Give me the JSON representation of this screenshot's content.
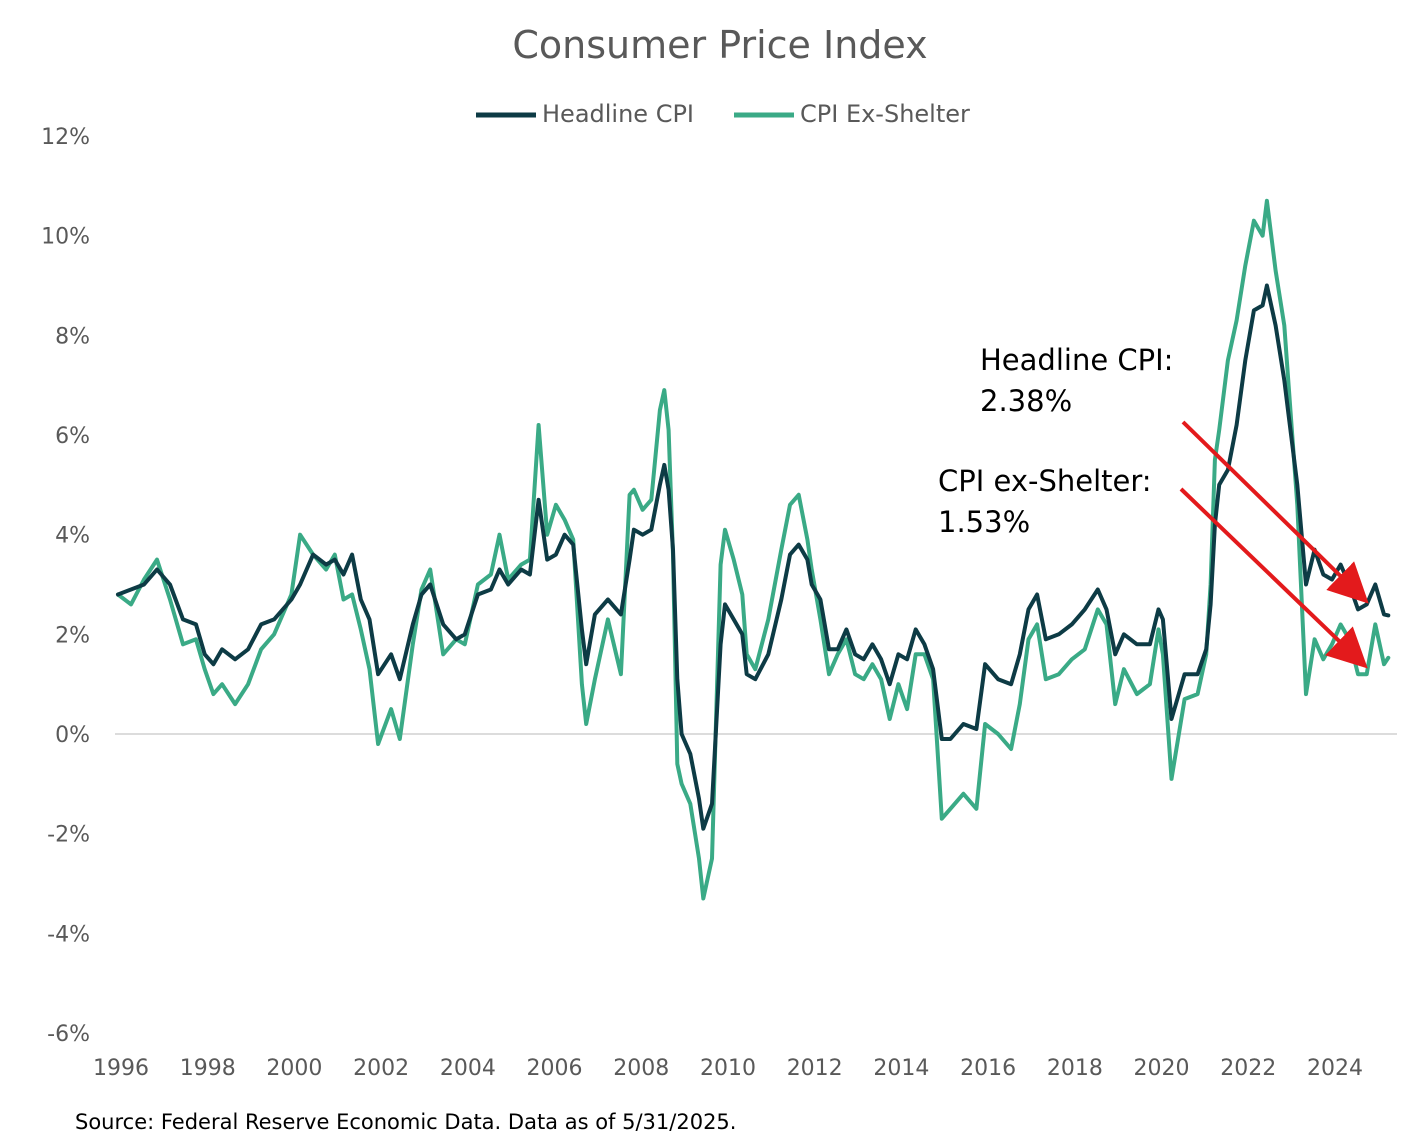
{
  "chart_data": {
    "type": "line",
    "title": "Consumer Price Index",
    "source": "Source: Federal Reserve Economic Data. Data as of 5/31/2025.",
    "xlabel": "",
    "ylabel": "",
    "xlim": [
      1996,
      2025.5
    ],
    "ylim": [
      -6,
      12
    ],
    "x_ticks": [
      1996,
      1998,
      2000,
      2002,
      2004,
      2006,
      2008,
      2010,
      2012,
      2014,
      2016,
      2018,
      2020,
      2022,
      2024
    ],
    "y_ticks": [
      -6,
      -4,
      -2,
      0,
      2,
      4,
      6,
      8,
      10,
      12
    ],
    "y_tick_labels": [
      "-6%",
      "-4%",
      "-2%",
      "0%",
      "2%",
      "4%",
      "6%",
      "8%",
      "10%",
      "12%"
    ],
    "grid": "zero line only",
    "legend_position": "top-center",
    "series": [
      {
        "name": "Headline CPI",
        "color": "#0d3b45",
        "points": [
          [
            1996.0,
            2.8
          ],
          [
            1996.3,
            2.9
          ],
          [
            1996.6,
            3.0
          ],
          [
            1996.9,
            3.3
          ],
          [
            1997.2,
            3.0
          ],
          [
            1997.5,
            2.3
          ],
          [
            1997.8,
            2.2
          ],
          [
            1998.0,
            1.6
          ],
          [
            1998.2,
            1.4
          ],
          [
            1998.4,
            1.7
          ],
          [
            1998.7,
            1.5
          ],
          [
            1999.0,
            1.7
          ],
          [
            1999.3,
            2.2
          ],
          [
            1999.6,
            2.3
          ],
          [
            2000.0,
            2.7
          ],
          [
            2000.2,
            3.0
          ],
          [
            2000.5,
            3.6
          ],
          [
            2000.8,
            3.4
          ],
          [
            2001.0,
            3.5
          ],
          [
            2001.2,
            3.2
          ],
          [
            2001.4,
            3.6
          ],
          [
            2001.6,
            2.7
          ],
          [
            2001.8,
            2.3
          ],
          [
            2002.0,
            1.2
          ],
          [
            2002.3,
            1.6
          ],
          [
            2002.5,
            1.1
          ],
          [
            2002.8,
            2.2
          ],
          [
            2003.0,
            2.8
          ],
          [
            2003.2,
            3.0
          ],
          [
            2003.5,
            2.2
          ],
          [
            2003.8,
            1.9
          ],
          [
            2004.0,
            2.0
          ],
          [
            2004.3,
            2.8
          ],
          [
            2004.6,
            2.9
          ],
          [
            2004.8,
            3.3
          ],
          [
            2005.0,
            3.0
          ],
          [
            2005.3,
            3.3
          ],
          [
            2005.5,
            3.2
          ],
          [
            2005.7,
            4.7
          ],
          [
            2005.9,
            3.5
          ],
          [
            2006.1,
            3.6
          ],
          [
            2006.3,
            4.0
          ],
          [
            2006.5,
            3.8
          ],
          [
            2006.7,
            2.1
          ],
          [
            2006.8,
            1.4
          ],
          [
            2007.0,
            2.4
          ],
          [
            2007.3,
            2.7
          ],
          [
            2007.6,
            2.4
          ],
          [
            2007.8,
            3.5
          ],
          [
            2007.9,
            4.1
          ],
          [
            2008.1,
            4.0
          ],
          [
            2008.3,
            4.1
          ],
          [
            2008.5,
            5.0
          ],
          [
            2008.6,
            5.4
          ],
          [
            2008.7,
            4.9
          ],
          [
            2008.8,
            3.7
          ],
          [
            2008.9,
            1.1
          ],
          [
            2009.0,
            0.0
          ],
          [
            2009.2,
            -0.4
          ],
          [
            2009.4,
            -1.3
          ],
          [
            2009.5,
            -1.9
          ],
          [
            2009.7,
            -1.4
          ],
          [
            2009.9,
            1.8
          ],
          [
            2010.0,
            2.6
          ],
          [
            2010.2,
            2.3
          ],
          [
            2010.4,
            2.0
          ],
          [
            2010.5,
            1.2
          ],
          [
            2010.7,
            1.1
          ],
          [
            2011.0,
            1.6
          ],
          [
            2011.3,
            2.7
          ],
          [
            2011.5,
            3.6
          ],
          [
            2011.7,
            3.8
          ],
          [
            2011.9,
            3.5
          ],
          [
            2012.0,
            3.0
          ],
          [
            2012.2,
            2.7
          ],
          [
            2012.4,
            1.7
          ],
          [
            2012.6,
            1.7
          ],
          [
            2012.8,
            2.1
          ],
          [
            2013.0,
            1.6
          ],
          [
            2013.2,
            1.5
          ],
          [
            2013.4,
            1.8
          ],
          [
            2013.6,
            1.5
          ],
          [
            2013.8,
            1.0
          ],
          [
            2014.0,
            1.6
          ],
          [
            2014.2,
            1.5
          ],
          [
            2014.4,
            2.1
          ],
          [
            2014.6,
            1.8
          ],
          [
            2014.8,
            1.3
          ],
          [
            2015.0,
            -0.1
          ],
          [
            2015.2,
            -0.1
          ],
          [
            2015.5,
            0.2
          ],
          [
            2015.8,
            0.1
          ],
          [
            2016.0,
            1.4
          ],
          [
            2016.3,
            1.1
          ],
          [
            2016.6,
            1.0
          ],
          [
            2016.8,
            1.6
          ],
          [
            2017.0,
            2.5
          ],
          [
            2017.2,
            2.8
          ],
          [
            2017.4,
            1.9
          ],
          [
            2017.7,
            2.0
          ],
          [
            2018.0,
            2.2
          ],
          [
            2018.3,
            2.5
          ],
          [
            2018.6,
            2.9
          ],
          [
            2018.8,
            2.5
          ],
          [
            2019.0,
            1.6
          ],
          [
            2019.2,
            2.0
          ],
          [
            2019.5,
            1.8
          ],
          [
            2019.8,
            1.8
          ],
          [
            2020.0,
            2.5
          ],
          [
            2020.1,
            2.3
          ],
          [
            2020.3,
            0.3
          ],
          [
            2020.6,
            1.2
          ],
          [
            2020.9,
            1.2
          ],
          [
            2021.1,
            1.7
          ],
          [
            2021.2,
            2.6
          ],
          [
            2021.3,
            4.2
          ],
          [
            2021.4,
            5.0
          ],
          [
            2021.6,
            5.3
          ],
          [
            2021.8,
            6.2
          ],
          [
            2022.0,
            7.5
          ],
          [
            2022.2,
            8.5
          ],
          [
            2022.4,
            8.6
          ],
          [
            2022.5,
            9.0
          ],
          [
            2022.7,
            8.2
          ],
          [
            2022.9,
            7.1
          ],
          [
            2023.0,
            6.4
          ],
          [
            2023.2,
            5.0
          ],
          [
            2023.4,
            3.0
          ],
          [
            2023.6,
            3.7
          ],
          [
            2023.8,
            3.2
          ],
          [
            2024.0,
            3.1
          ],
          [
            2024.2,
            3.4
          ],
          [
            2024.4,
            3.0
          ],
          [
            2024.6,
            2.5
          ],
          [
            2024.8,
            2.6
          ],
          [
            2025.0,
            3.0
          ],
          [
            2025.2,
            2.4
          ],
          [
            2025.3,
            2.38
          ]
        ]
      },
      {
        "name": "CPI Ex-Shelter",
        "color": "#3aaa86",
        "points": [
          [
            1996.0,
            2.8
          ],
          [
            1996.3,
            2.6
          ],
          [
            1996.6,
            3.1
          ],
          [
            1996.9,
            3.5
          ],
          [
            1997.2,
            2.7
          ],
          [
            1997.5,
            1.8
          ],
          [
            1997.8,
            1.9
          ],
          [
            1998.0,
            1.3
          ],
          [
            1998.2,
            0.8
          ],
          [
            1998.4,
            1.0
          ],
          [
            1998.7,
            0.6
          ],
          [
            1999.0,
            1.0
          ],
          [
            1999.3,
            1.7
          ],
          [
            1999.6,
            2.0
          ],
          [
            2000.0,
            2.8
          ],
          [
            2000.2,
            4.0
          ],
          [
            2000.5,
            3.6
          ],
          [
            2000.8,
            3.3
          ],
          [
            2001.0,
            3.6
          ],
          [
            2001.2,
            2.7
          ],
          [
            2001.4,
            2.8
          ],
          [
            2001.6,
            2.1
          ],
          [
            2001.8,
            1.3
          ],
          [
            2002.0,
            -0.2
          ],
          [
            2002.3,
            0.5
          ],
          [
            2002.5,
            -0.1
          ],
          [
            2002.8,
            1.8
          ],
          [
            2003.0,
            2.9
          ],
          [
            2003.2,
            3.3
          ],
          [
            2003.5,
            1.6
          ],
          [
            2003.8,
            1.9
          ],
          [
            2004.0,
            1.8
          ],
          [
            2004.3,
            3.0
          ],
          [
            2004.6,
            3.2
          ],
          [
            2004.8,
            4.0
          ],
          [
            2005.0,
            3.1
          ],
          [
            2005.3,
            3.4
          ],
          [
            2005.5,
            3.5
          ],
          [
            2005.7,
            6.2
          ],
          [
            2005.9,
            4.0
          ],
          [
            2006.1,
            4.6
          ],
          [
            2006.3,
            4.3
          ],
          [
            2006.5,
            3.9
          ],
          [
            2006.7,
            1.0
          ],
          [
            2006.8,
            0.2
          ],
          [
            2007.0,
            1.1
          ],
          [
            2007.3,
            2.3
          ],
          [
            2007.6,
            1.2
          ],
          [
            2007.8,
            4.8
          ],
          [
            2007.9,
            4.9
          ],
          [
            2008.1,
            4.5
          ],
          [
            2008.3,
            4.7
          ],
          [
            2008.5,
            6.5
          ],
          [
            2008.6,
            6.9
          ],
          [
            2008.7,
            6.1
          ],
          [
            2008.8,
            3.6
          ],
          [
            2008.9,
            -0.6
          ],
          [
            2009.0,
            -1.0
          ],
          [
            2009.2,
            -1.4
          ],
          [
            2009.4,
            -2.5
          ],
          [
            2009.5,
            -3.3
          ],
          [
            2009.7,
            -2.5
          ],
          [
            2009.9,
            3.4
          ],
          [
            2010.0,
            4.1
          ],
          [
            2010.2,
            3.5
          ],
          [
            2010.4,
            2.8
          ],
          [
            2010.5,
            1.6
          ],
          [
            2010.7,
            1.3
          ],
          [
            2011.0,
            2.3
          ],
          [
            2011.3,
            3.7
          ],
          [
            2011.5,
            4.6
          ],
          [
            2011.7,
            4.8
          ],
          [
            2011.9,
            3.9
          ],
          [
            2012.0,
            3.3
          ],
          [
            2012.2,
            2.3
          ],
          [
            2012.4,
            1.2
          ],
          [
            2012.6,
            1.6
          ],
          [
            2012.8,
            1.9
          ],
          [
            2013.0,
            1.2
          ],
          [
            2013.2,
            1.1
          ],
          [
            2013.4,
            1.4
          ],
          [
            2013.6,
            1.1
          ],
          [
            2013.8,
            0.3
          ],
          [
            2014.0,
            1.0
          ],
          [
            2014.2,
            0.5
          ],
          [
            2014.4,
            1.6
          ],
          [
            2014.6,
            1.6
          ],
          [
            2014.8,
            1.1
          ],
          [
            2015.0,
            -1.7
          ],
          [
            2015.2,
            -1.5
          ],
          [
            2015.5,
            -1.2
          ],
          [
            2015.8,
            -1.5
          ],
          [
            2016.0,
            0.2
          ],
          [
            2016.3,
            0.0
          ],
          [
            2016.6,
            -0.3
          ],
          [
            2016.8,
            0.6
          ],
          [
            2017.0,
            1.9
          ],
          [
            2017.2,
            2.2
          ],
          [
            2017.4,
            1.1
          ],
          [
            2017.7,
            1.2
          ],
          [
            2018.0,
            1.5
          ],
          [
            2018.3,
            1.7
          ],
          [
            2018.6,
            2.5
          ],
          [
            2018.8,
            2.2
          ],
          [
            2019.0,
            0.6
          ],
          [
            2019.2,
            1.3
          ],
          [
            2019.5,
            0.8
          ],
          [
            2019.8,
            1.0
          ],
          [
            2020.0,
            2.1
          ],
          [
            2020.1,
            1.6
          ],
          [
            2020.3,
            -0.9
          ],
          [
            2020.6,
            0.7
          ],
          [
            2020.9,
            0.8
          ],
          [
            2021.1,
            1.6
          ],
          [
            2021.2,
            3.0
          ],
          [
            2021.3,
            5.5
          ],
          [
            2021.4,
            6.1
          ],
          [
            2021.6,
            7.5
          ],
          [
            2021.8,
            8.3
          ],
          [
            2022.0,
            9.4
          ],
          [
            2022.2,
            10.3
          ],
          [
            2022.4,
            10.0
          ],
          [
            2022.5,
            10.7
          ],
          [
            2022.7,
            9.3
          ],
          [
            2022.9,
            8.2
          ],
          [
            2023.0,
            7.0
          ],
          [
            2023.2,
            4.6
          ],
          [
            2023.4,
            0.8
          ],
          [
            2023.6,
            1.9
          ],
          [
            2023.8,
            1.5
          ],
          [
            2024.0,
            1.8
          ],
          [
            2024.2,
            2.2
          ],
          [
            2024.4,
            1.9
          ],
          [
            2024.6,
            1.2
          ],
          [
            2024.8,
            1.2
          ],
          [
            2025.0,
            2.2
          ],
          [
            2025.2,
            1.4
          ],
          [
            2025.3,
            1.53
          ]
        ]
      }
    ],
    "annotations": [
      {
        "line1": "Headline CPI:",
        "line2": "2.38%"
      },
      {
        "line1": "CPI ex-Shelter:",
        "line2": "1.53%"
      }
    ],
    "arrow_color": "#e31a1c"
  }
}
